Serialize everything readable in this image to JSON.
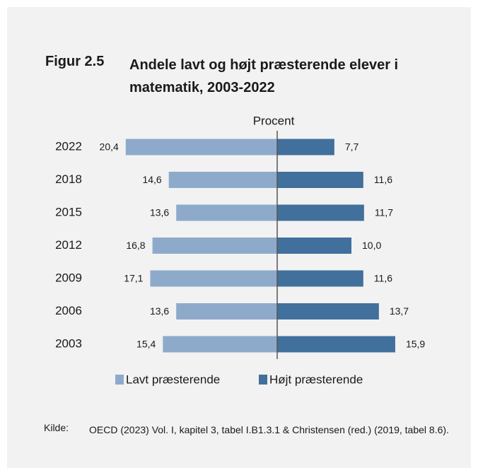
{
  "figure": {
    "number": "Figur 2.5",
    "title": "Andele lavt og højt præsterende elever i matematik, 2003-2022"
  },
  "source": {
    "label": "Kilde:",
    "text": "OECD (2023) Vol. I, kapitel 3, tabel I.B1.3.1 & Christensen (red.) (2019, tabel 8.6)."
  },
  "colors": {
    "background": "#f2f2f2",
    "low": "#8eaacb",
    "high": "#41709c",
    "axis": "#555555"
  },
  "chart_data": {
    "type": "bar",
    "orientation": "horizontal-diverging",
    "title": "Andele lavt og højt præsterende elever i matematik, 2003-2022",
    "axis_label": "Procent",
    "categories": [
      "2022",
      "2018",
      "2015",
      "2012",
      "2009",
      "2006",
      "2003"
    ],
    "series": [
      {
        "name": "Lavt præsterende",
        "values": [
          20.4,
          14.6,
          13.6,
          16.8,
          17.1,
          13.6,
          15.4
        ],
        "labels": [
          "20,4",
          "14,6",
          "13,6",
          "16,8",
          "17,1",
          "13,6",
          "15,4"
        ],
        "direction": "left"
      },
      {
        "name": "Højt præsterende",
        "values": [
          7.7,
          11.6,
          11.7,
          10.0,
          11.6,
          13.7,
          15.9
        ],
        "labels": [
          "7,7",
          "11,6",
          "11,7",
          "10,0",
          "11,6",
          "13,7",
          "15,9"
        ],
        "direction": "right"
      }
    ],
    "legend": "bottom",
    "grid": false
  }
}
